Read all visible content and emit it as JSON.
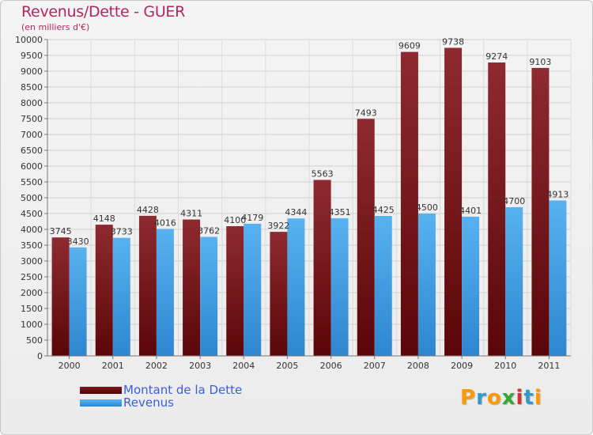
{
  "title": "Revenus/Dette - GUER",
  "subtitle": "(en milliers d'€)",
  "legend": [
    {
      "label": "Montant de la Dette",
      "color": "#6e0f15"
    },
    {
      "label": "Revenus",
      "color": "#3d9ae2"
    }
  ],
  "logo": {
    "letters": [
      "P",
      "r",
      "o",
      "x",
      "i",
      "t",
      "i"
    ],
    "colors": [
      "#ff9900",
      "#3399cc",
      "#ff9900",
      "#33aa33",
      "#cc3333",
      "#3399cc",
      "#ff9900"
    ]
  },
  "chart_data": {
    "type": "bar",
    "categories": [
      "2000",
      "2001",
      "2002",
      "2003",
      "2004",
      "2005",
      "2006",
      "2007",
      "2008",
      "2009",
      "2010",
      "2011"
    ],
    "series": [
      {
        "name": "Montant de la Dette",
        "color": "#7a1a1f",
        "values": [
          3745,
          4148,
          4428,
          4311,
          4100,
          3922,
          5563,
          7493,
          9609,
          9738,
          9274,
          9103
        ]
      },
      {
        "name": "Revenus",
        "color": "#4aa8ec",
        "values": [
          3430,
          3733,
          4016,
          3762,
          4179,
          4344,
          4351,
          4425,
          4500,
          4401,
          4700,
          4913
        ]
      }
    ],
    "yticks": [
      0,
      500,
      1000,
      1500,
      2000,
      2500,
      3000,
      3500,
      4000,
      4500,
      5000,
      5500,
      6000,
      6500,
      7000,
      7500,
      8000,
      8500,
      9000,
      9500,
      10000
    ],
    "ylim": [
      0,
      10000
    ],
    "grid": true
  }
}
